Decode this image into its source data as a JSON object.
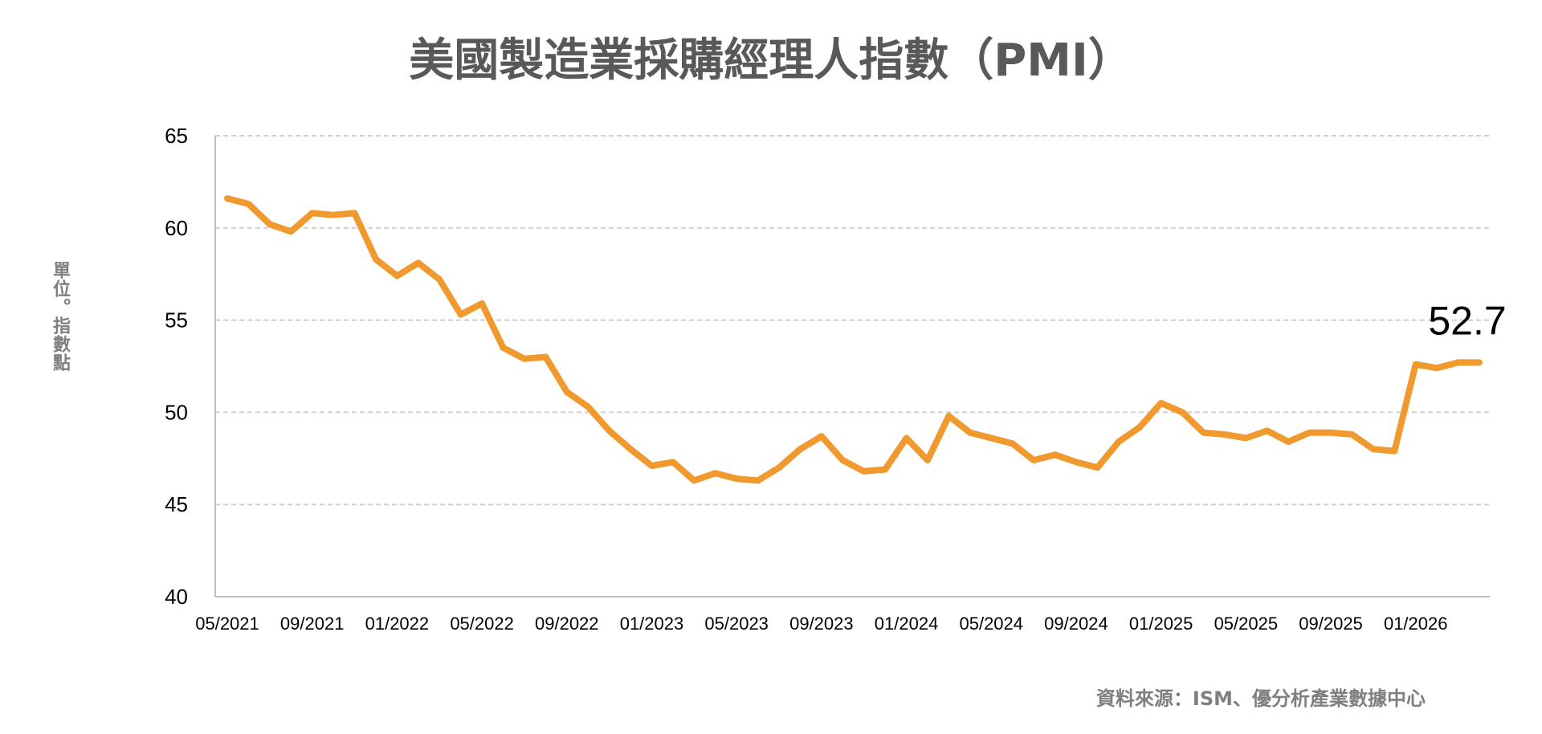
{
  "chart_data": {
    "type": "line",
    "title": "美國製造業採購經理人指數（PMI）",
    "ylabel": "單位。指數點",
    "xlabel": "",
    "source": "資料來源：ISM、優分析產業數據中心",
    "ylim": [
      40,
      65
    ],
    "yticks": [
      "65",
      "60",
      "55",
      "50",
      "45",
      "40"
    ],
    "xticks": [
      "05/2021",
      "09/2021",
      "01/2022",
      "05/2022",
      "09/2022",
      "01/2023",
      "05/2023",
      "09/2023",
      "01/2024",
      "05/2024",
      "09/2024",
      "01/2025",
      "05/2025",
      "09/2025",
      "01/2026"
    ],
    "grid": true,
    "line_color": "#F0992E",
    "last_value_label": "52.7",
    "series": [
      {
        "x": [
          "05/2021",
          "06/2021",
          "07/2021",
          "08/2021",
          "09/2021",
          "10/2021",
          "11/2021",
          "12/2021",
          "01/2022",
          "02/2022",
          "03/2022",
          "04/2022",
          "05/2022",
          "06/2022",
          "07/2022",
          "08/2022",
          "09/2022",
          "10/2022",
          "11/2022",
          "12/2022",
          "01/2023",
          "02/2023",
          "03/2023",
          "04/2023",
          "05/2023",
          "06/2023",
          "07/2023",
          "08/2023",
          "09/2023",
          "10/2023",
          "11/2023",
          "12/2023",
          "01/2024",
          "02/2024",
          "03/2024",
          "04/2024",
          "05/2024",
          "06/2024",
          "07/2024",
          "08/2024",
          "09/2024",
          "10/2024",
          "11/2024",
          "12/2024",
          "01/2025",
          "02/2025",
          "03/2025",
          "04/2025",
          "05/2025",
          "06/2025",
          "07/2025",
          "08/2025",
          "09/2025",
          "10/2025",
          "11/2025",
          "12/2025",
          "01/2026",
          "02/2026",
          "03/2026",
          "04/2026"
        ],
        "values": [
          61.6,
          61.3,
          60.2,
          59.8,
          60.8,
          60.7,
          60.8,
          58.3,
          57.4,
          58.1,
          57.2,
          55.3,
          55.9,
          53.5,
          52.9,
          53.0,
          51.1,
          50.3,
          49.0,
          48.0,
          47.1,
          47.3,
          46.3,
          46.7,
          46.4,
          46.3,
          47.0,
          48.0,
          48.7,
          47.4,
          46.8,
          46.9,
          48.6,
          47.4,
          49.8,
          48.9,
          48.6,
          48.3,
          47.4,
          47.7,
          47.3,
          47.0,
          48.4,
          49.2,
          50.5,
          50.0,
          48.9,
          48.8,
          48.6,
          49.0,
          48.4,
          48.9,
          48.9,
          48.8,
          48.0,
          47.9,
          52.6,
          52.4,
          52.7,
          52.7
        ]
      }
    ]
  }
}
